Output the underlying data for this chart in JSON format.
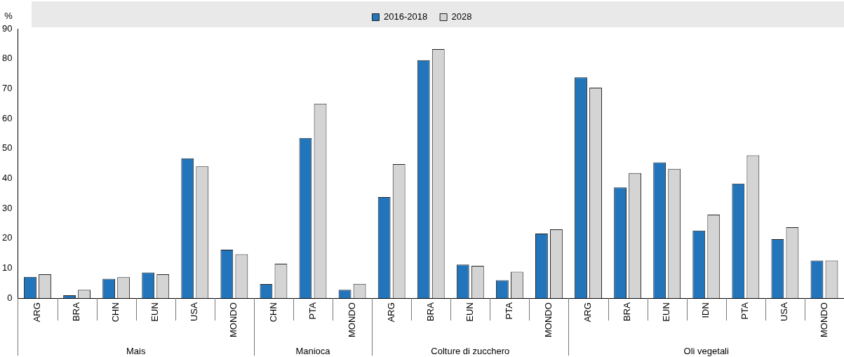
{
  "chart_data": {
    "type": "bar",
    "ylabel": "%",
    "categories": [
      "ARG",
      "BRA",
      "CHN",
      "EUN",
      "USA",
      "MONDO",
      "CHN",
      "PTA",
      "MONDO",
      "ARG",
      "BRA",
      "EUN",
      "PTA",
      "MONDO",
      "ARG",
      "BRA",
      "EUN",
      "IDN",
      "PTA",
      "USA",
      "MONDO"
    ],
    "annotations": [
      "Mais",
      "Manioca",
      "Colture di zucchero",
      "Oli vegetali"
    ],
    "series": [
      {
        "name": "2016-2018",
        "color": "#2375bb",
        "values": [
          7.1,
          1,
          6.5,
          8.6,
          46.7,
          16.2,
          4.7,
          53.5,
          2.8,
          33.8,
          79.5,
          11.2,
          6,
          21.6,
          73.8,
          37,
          45.4,
          22.6,
          38.3,
          19.7,
          12.6
        ]
      },
      {
        "name": "2028",
        "color": "#d4d4d4",
        "values": [
          8,
          2.8,
          7,
          8,
          44,
          14.7,
          11.5,
          65,
          4.8,
          44.8,
          83.2,
          10.8,
          8.8,
          23,
          70.3,
          41.8,
          43.2,
          27.9,
          47.7,
          23.7,
          12.6
        ]
      }
    ],
    "ylim": [
      0,
      90
    ],
    "yticks": [
      0,
      10,
      20,
      30,
      40,
      50,
      60,
      70,
      80,
      90
    ],
    "grid": false,
    "legend": "top"
  }
}
